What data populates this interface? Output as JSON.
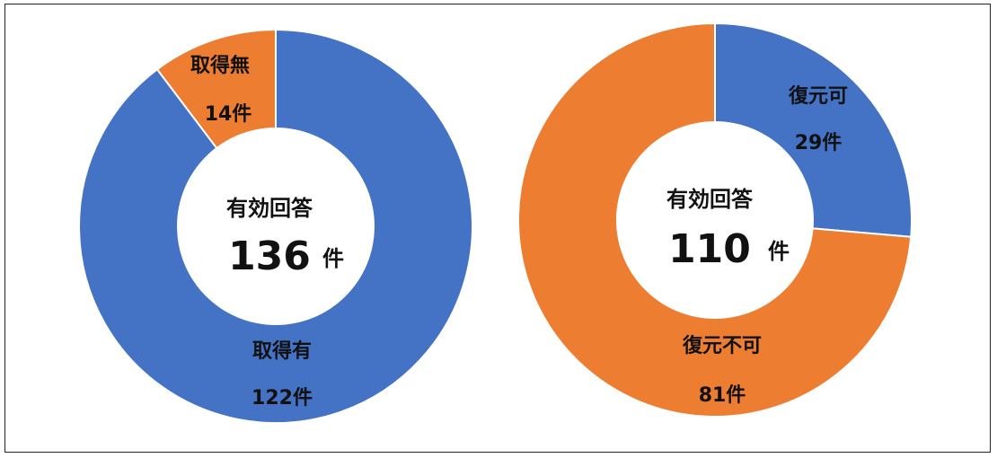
{
  "chart_data": [
    {
      "type": "pie",
      "variant": "donut",
      "categories": [
        "取得有",
        "取得無"
      ],
      "values": [
        122,
        14
      ],
      "value_labels": [
        "122件",
        "14件"
      ],
      "colors": [
        "#4472C4",
        "#ED7D31"
      ],
      "center": {
        "title": "有効回答",
        "total": "136",
        "unit": "件"
      }
    },
    {
      "type": "pie",
      "variant": "donut",
      "categories": [
        "復元可",
        "復元不可"
      ],
      "values": [
        29,
        81
      ],
      "value_labels": [
        "29件",
        "81件"
      ],
      "colors": [
        "#4472C4",
        "#ED7D31"
      ],
      "center": {
        "title": "有効回答",
        "total": "110",
        "unit": "件"
      }
    }
  ]
}
